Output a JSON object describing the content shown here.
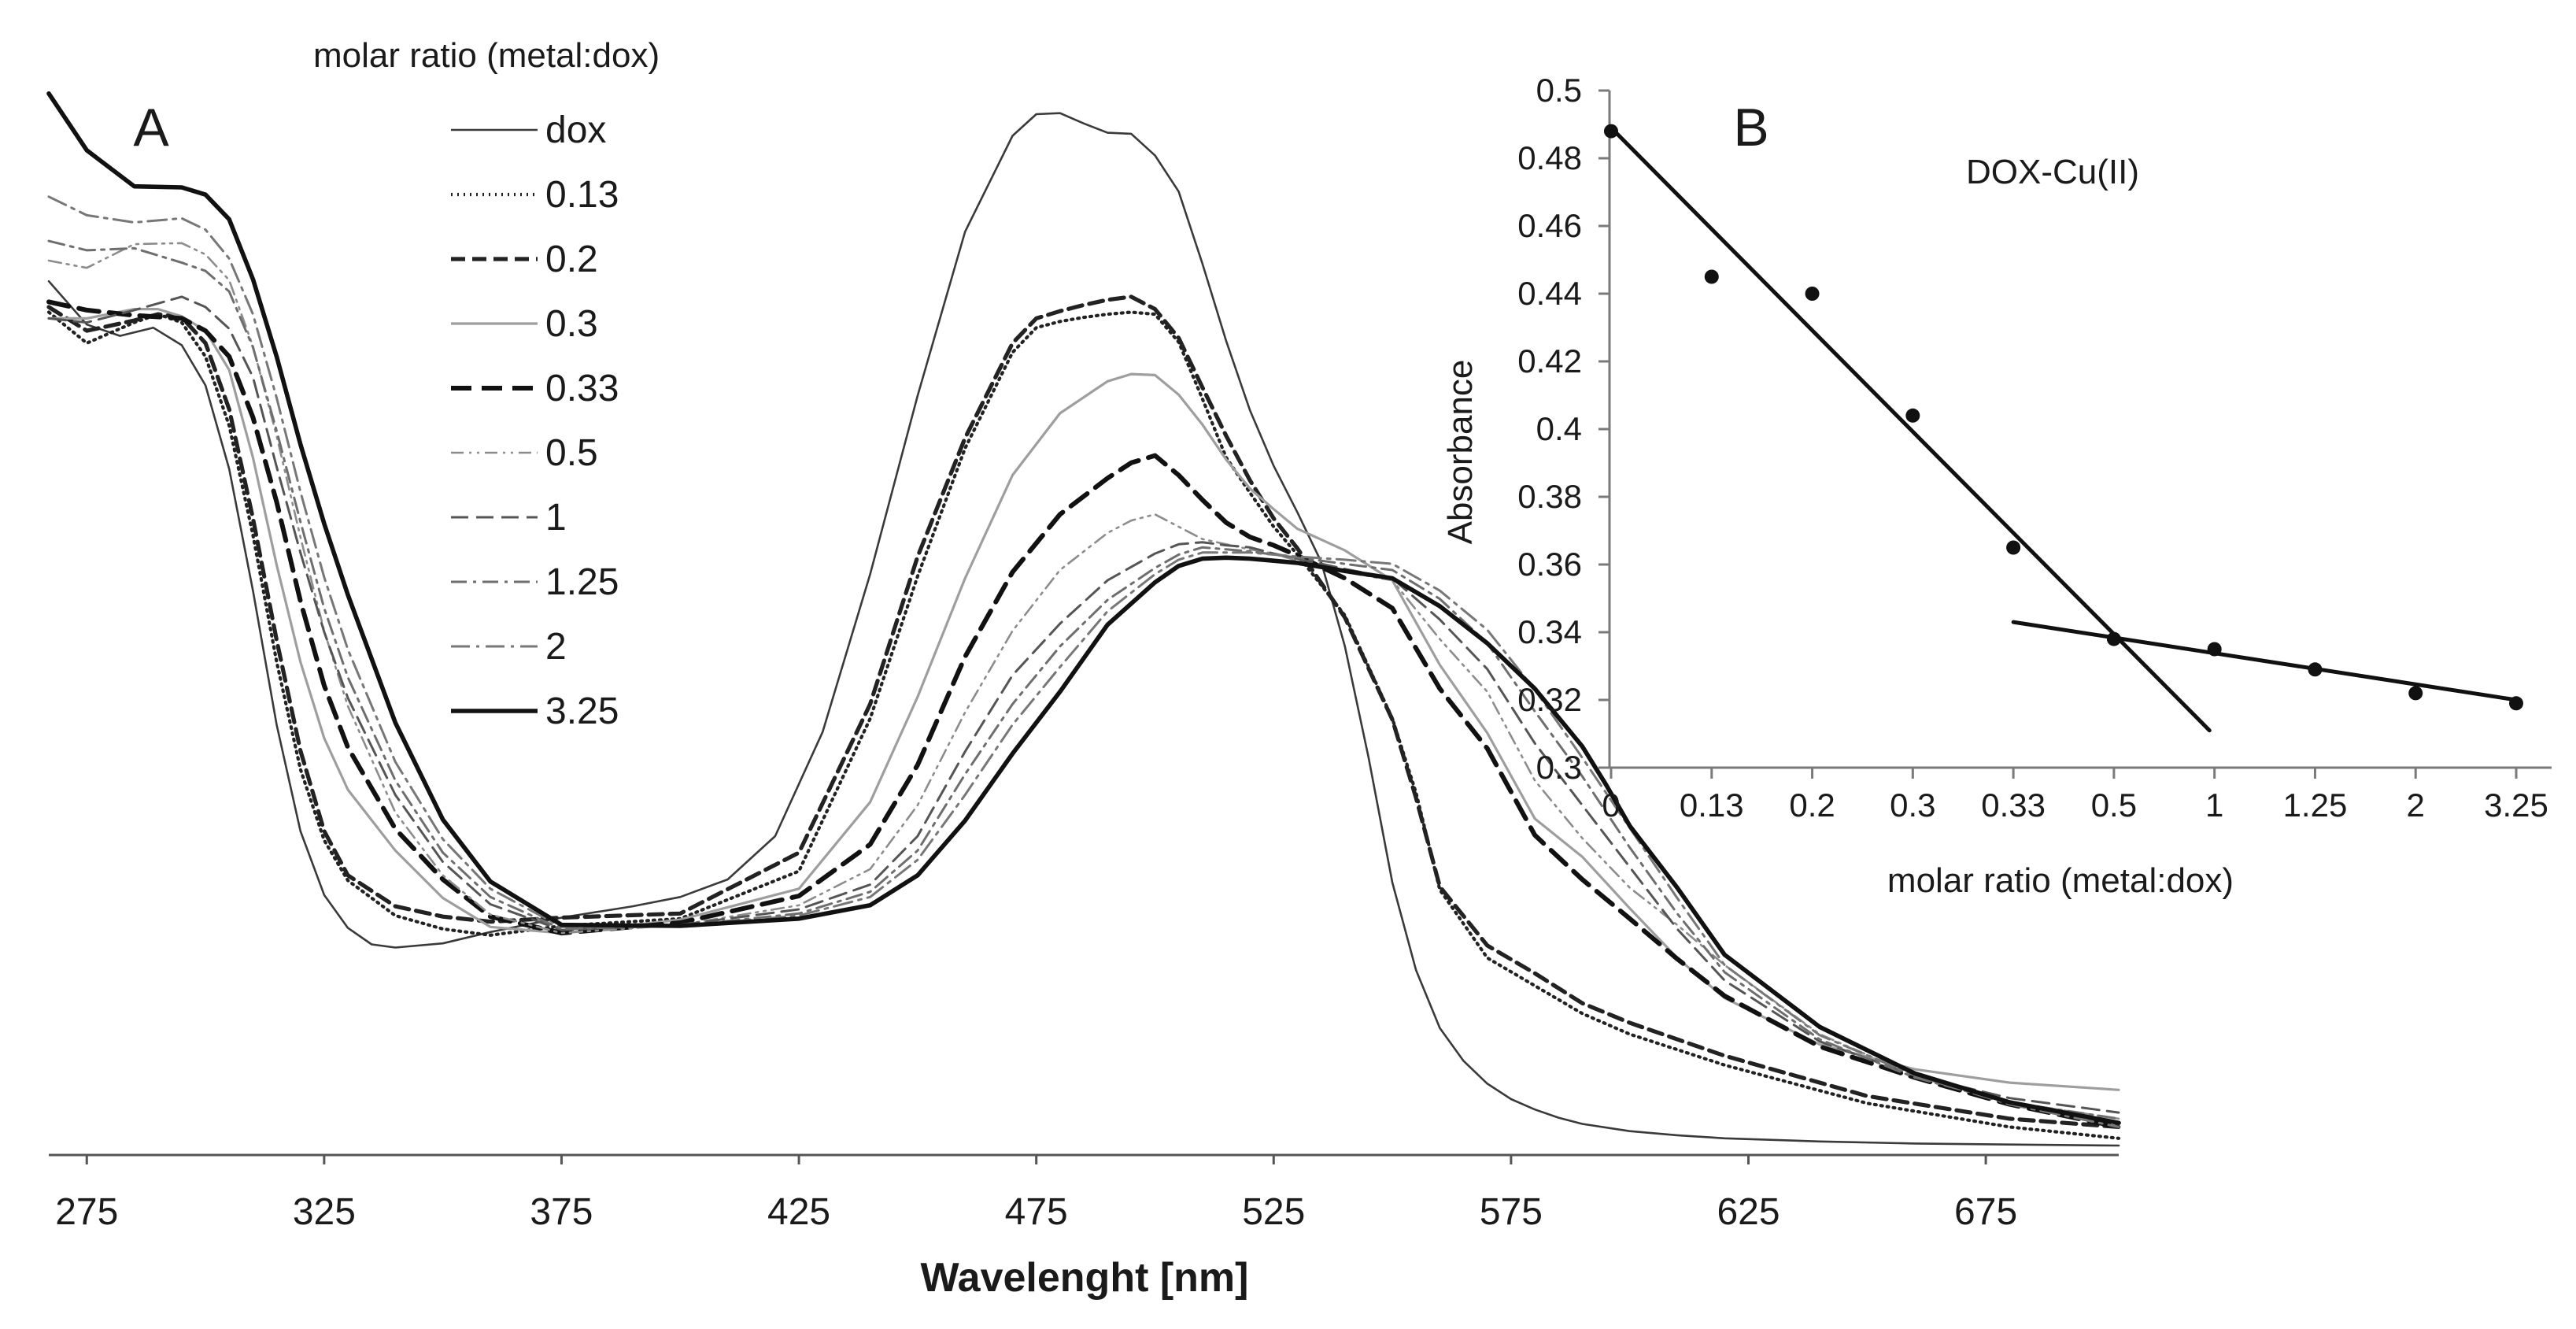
{
  "chart_data": [
    {
      "panel": "A",
      "type": "line",
      "title": "",
      "xlabel": "Wavelenght [nm]",
      "ylabel": "",
      "xlim": [
        267,
        703
      ],
      "ylim": [
        0,
        1
      ],
      "x_ticks": [
        275,
        325,
        375,
        425,
        475,
        525,
        575,
        625,
        675
      ],
      "tick_labels": [
        "275",
        "325",
        "375",
        "425",
        "475",
        "525",
        "575",
        "625",
        "675"
      ],
      "legend_title": "molar ratio (metal:dox)",
      "legend_position": "top-center",
      "colors": {
        "dox": "#3a3a3a",
        "0.13": "#222222",
        "0.2": "#222222",
        "0.3": "#9e9e9e",
        "0.33": "#111111",
        "0.5": "#8c8c8c",
        "1": "#555555",
        "1.25": "#6e6e6e",
        "2": "#777777",
        "3.25": "#111111"
      },
      "series": [
        {
          "name": "dox",
          "x": [
            267,
            275,
            282,
            289,
            295,
            300,
            305,
            310,
            315,
            320,
            325,
            330,
            335,
            340,
            350,
            360,
            375,
            390,
            400,
            410,
            420,
            430,
            440,
            450,
            460,
            470,
            475,
            480,
            485,
            490,
            495,
            500,
            505,
            510,
            515,
            520,
            525,
            530,
            535,
            540,
            545,
            550,
            555,
            560,
            565,
            570,
            575,
            580,
            585,
            590,
            600,
            610,
            620,
            640,
            660,
            680,
            703
          ],
          "values": [
            0.838,
            0.796,
            0.785,
            0.793,
            0.776,
            0.737,
            0.656,
            0.538,
            0.408,
            0.305,
            0.243,
            0.211,
            0.195,
            0.192,
            0.196,
            0.207,
            0.221,
            0.232,
            0.241,
            0.258,
            0.3,
            0.401,
            0.554,
            0.727,
            0.886,
            0.979,
            1.0,
            1.001,
            0.991,
            0.982,
            0.981,
            0.96,
            0.925,
            0.855,
            0.78,
            0.713,
            0.659,
            0.614,
            0.566,
            0.484,
            0.376,
            0.255,
            0.17,
            0.114,
            0.082,
            0.06,
            0.045,
            0.035,
            0.027,
            0.021,
            0.014,
            0.01,
            0.007,
            0.004,
            0.002,
            0.001,
            0.0
          ]
        },
        {
          "name": "0.13",
          "x": [
            267,
            275,
            285,
            290,
            295,
            300,
            305,
            310,
            315,
            320,
            325,
            330,
            340,
            350,
            360,
            375,
            400,
            425,
            440,
            450,
            460,
            470,
            475,
            480,
            485,
            490,
            495,
            500,
            505,
            510,
            515,
            520,
            525,
            530,
            540,
            550,
            555,
            560,
            570,
            580,
            590,
            600,
            620,
            650,
            680,
            703
          ],
          "values": [
            0.808,
            0.778,
            0.798,
            0.806,
            0.798,
            0.765,
            0.698,
            0.592,
            0.469,
            0.365,
            0.296,
            0.257,
            0.223,
            0.21,
            0.204,
            0.213,
            0.22,
            0.266,
            0.414,
            0.552,
            0.676,
            0.769,
            0.793,
            0.799,
            0.803,
            0.806,
            0.808,
            0.806,
            0.779,
            0.724,
            0.667,
            0.633,
            0.6,
            0.573,
            0.514,
            0.414,
            0.342,
            0.248,
            0.182,
            0.155,
            0.128,
            0.108,
            0.078,
            0.041,
            0.018,
            0.007
          ]
        },
        {
          "name": "0.2",
          "x": [
            267,
            275,
            285,
            290,
            295,
            300,
            305,
            310,
            315,
            320,
            325,
            330,
            340,
            350,
            360,
            375,
            400,
            425,
            440,
            450,
            460,
            470,
            475,
            480,
            485,
            490,
            495,
            500,
            505,
            510,
            515,
            520,
            525,
            530,
            540,
            550,
            555,
            560,
            570,
            580,
            590,
            600,
            620,
            650,
            680,
            703
          ],
          "values": [
            0.813,
            0.79,
            0.8,
            0.806,
            0.803,
            0.778,
            0.714,
            0.608,
            0.49,
            0.383,
            0.305,
            0.262,
            0.232,
            0.222,
            0.217,
            0.221,
            0.225,
            0.284,
            0.428,
            0.571,
            0.686,
            0.778,
            0.802,
            0.809,
            0.815,
            0.82,
            0.823,
            0.811,
            0.783,
            0.735,
            0.688,
            0.645,
            0.608,
            0.579,
            0.512,
            0.413,
            0.337,
            0.251,
            0.194,
            0.167,
            0.138,
            0.119,
            0.087,
            0.048,
            0.026,
            0.018
          ]
        },
        {
          "name": "0.3",
          "x": [
            267,
            275,
            285,
            290,
            295,
            300,
            305,
            310,
            315,
            320,
            325,
            330,
            340,
            350,
            360,
            375,
            400,
            425,
            440,
            450,
            460,
            470,
            480,
            490,
            495,
            500,
            505,
            510,
            515,
            520,
            525,
            530,
            540,
            550,
            560,
            570,
            580,
            590,
            600,
            610,
            620,
            640,
            660,
            680,
            703
          ],
          "values": [
            0.802,
            0.802,
            0.811,
            0.811,
            0.804,
            0.79,
            0.752,
            0.667,
            0.563,
            0.469,
            0.395,
            0.345,
            0.286,
            0.24,
            0.212,
            0.206,
            0.219,
            0.249,
            0.333,
            0.435,
            0.55,
            0.65,
            0.71,
            0.741,
            0.748,
            0.747,
            0.728,
            0.699,
            0.665,
            0.637,
            0.617,
            0.598,
            0.577,
            0.548,
            0.466,
            0.4,
            0.317,
            0.28,
            0.23,
            0.182,
            0.143,
            0.098,
            0.074,
            0.061,
            0.054
          ]
        },
        {
          "name": "0.33",
          "x": [
            267,
            275,
            285,
            295,
            300,
            305,
            310,
            315,
            320,
            325,
            330,
            340,
            350,
            360,
            375,
            400,
            425,
            440,
            450,
            460,
            470,
            480,
            490,
            495,
            500,
            505,
            510,
            515,
            520,
            525,
            530,
            540,
            550,
            560,
            570,
            580,
            590,
            600,
            610,
            620,
            640,
            660,
            680,
            703
          ],
          "values": [
            0.818,
            0.81,
            0.805,
            0.802,
            0.79,
            0.765,
            0.706,
            0.624,
            0.528,
            0.446,
            0.386,
            0.307,
            0.258,
            0.222,
            0.206,
            0.216,
            0.242,
            0.292,
            0.369,
            0.474,
            0.556,
            0.612,
            0.647,
            0.662,
            0.669,
            0.65,
            0.626,
            0.604,
            0.59,
            0.582,
            0.572,
            0.55,
            0.521,
            0.443,
            0.385,
            0.301,
            0.258,
            0.22,
            0.181,
            0.145,
            0.096,
            0.066,
            0.04,
            0.018
          ]
        },
        {
          "name": "0.5",
          "x": [
            267,
            275,
            285,
            295,
            300,
            305,
            310,
            315,
            320,
            325,
            330,
            340,
            350,
            360,
            375,
            400,
            425,
            440,
            450,
            460,
            470,
            480,
            490,
            495,
            500,
            505,
            510,
            515,
            520,
            525,
            530,
            540,
            550,
            560,
            570,
            580,
            590,
            600,
            610,
            620,
            640,
            660,
            680,
            703
          ],
          "values": [
            0.858,
            0.851,
            0.874,
            0.875,
            0.864,
            0.839,
            0.775,
            0.688,
            0.59,
            0.499,
            0.426,
            0.323,
            0.262,
            0.224,
            0.206,
            0.214,
            0.233,
            0.268,
            0.33,
            0.42,
            0.499,
            0.558,
            0.594,
            0.606,
            0.612,
            0.6,
            0.588,
            0.583,
            0.578,
            0.574,
            0.567,
            0.556,
            0.548,
            0.491,
            0.44,
            0.354,
            0.298,
            0.25,
            0.214,
            0.175,
            0.108,
            0.068,
            0.042,
            0.026
          ]
        },
        {
          "name": "1",
          "x": [
            267,
            275,
            285,
            295,
            300,
            305,
            310,
            315,
            320,
            325,
            330,
            340,
            350,
            360,
            375,
            400,
            425,
            440,
            450,
            460,
            470,
            480,
            490,
            500,
            505,
            510,
            515,
            520,
            525,
            530,
            540,
            550,
            560,
            570,
            580,
            590,
            600,
            610,
            620,
            640,
            660,
            680,
            703
          ],
          "values": [
            0.802,
            0.798,
            0.81,
            0.823,
            0.813,
            0.792,
            0.745,
            0.658,
            0.575,
            0.498,
            0.434,
            0.34,
            0.275,
            0.234,
            0.209,
            0.214,
            0.229,
            0.253,
            0.3,
            0.382,
            0.456,
            0.506,
            0.548,
            0.574,
            0.583,
            0.585,
            0.582,
            0.58,
            0.574,
            0.569,
            0.559,
            0.55,
            0.51,
            0.462,
            0.39,
            0.33,
            0.27,
            0.21,
            0.16,
            0.101,
            0.068,
            0.046,
            0.032
          ]
        },
        {
          "name": "1.25",
          "x": [
            267,
            275,
            285,
            295,
            300,
            305,
            310,
            315,
            320,
            325,
            330,
            340,
            350,
            360,
            375,
            400,
            425,
            440,
            450,
            460,
            470,
            480,
            490,
            500,
            505,
            510,
            515,
            520,
            525,
            530,
            540,
            550,
            560,
            570,
            580,
            590,
            600,
            610,
            620,
            640,
            660,
            680,
            703
          ],
          "values": [
            0.877,
            0.868,
            0.87,
            0.856,
            0.848,
            0.828,
            0.774,
            0.693,
            0.605,
            0.521,
            0.454,
            0.354,
            0.284,
            0.241,
            0.21,
            0.213,
            0.225,
            0.246,
            0.286,
            0.36,
            0.428,
            0.484,
            0.529,
            0.56,
            0.573,
            0.58,
            0.578,
            0.576,
            0.573,
            0.57,
            0.564,
            0.558,
            0.53,
            0.487,
            0.421,
            0.358,
            0.289,
            0.225,
            0.168,
            0.103,
            0.066,
            0.042,
            0.026
          ]
        },
        {
          "name": "2",
          "x": [
            267,
            275,
            285,
            295,
            300,
            305,
            310,
            315,
            320,
            325,
            330,
            340,
            350,
            360,
            375,
            400,
            425,
            440,
            450,
            460,
            470,
            480,
            490,
            500,
            505,
            510,
            515,
            520,
            525,
            530,
            540,
            550,
            560,
            570,
            580,
            590,
            600,
            610,
            620,
            640,
            660,
            680,
            703
          ],
          "values": [
            0.92,
            0.902,
            0.895,
            0.899,
            0.888,
            0.86,
            0.806,
            0.725,
            0.634,
            0.551,
            0.481,
            0.372,
            0.297,
            0.249,
            0.212,
            0.213,
            0.223,
            0.241,
            0.277,
            0.34,
            0.408,
            0.464,
            0.518,
            0.554,
            0.568,
            0.575,
            0.575,
            0.575,
            0.573,
            0.571,
            0.568,
            0.564,
            0.538,
            0.5,
            0.442,
            0.376,
            0.308,
            0.24,
            0.175,
            0.107,
            0.068,
            0.04,
            0.018
          ]
        },
        {
          "name": "3.25",
          "x": [
            267,
            275,
            285,
            295,
            300,
            305,
            310,
            315,
            320,
            325,
            330,
            340,
            350,
            360,
            375,
            400,
            425,
            440,
            450,
            460,
            470,
            480,
            490,
            500,
            505,
            510,
            515,
            520,
            525,
            530,
            540,
            550,
            560,
            570,
            580,
            590,
            595,
            600,
            610,
            620,
            640,
            660,
            680,
            703
          ],
          "values": [
            1.02,
            0.965,
            0.93,
            0.929,
            0.922,
            0.898,
            0.84,
            0.765,
            0.68,
            0.603,
            0.534,
            0.41,
            0.316,
            0.256,
            0.214,
            0.213,
            0.22,
            0.233,
            0.262,
            0.315,
            0.38,
            0.44,
            0.505,
            0.546,
            0.562,
            0.569,
            0.57,
            0.569,
            0.567,
            0.565,
            0.557,
            0.55,
            0.523,
            0.487,
            0.443,
            0.387,
            0.35,
            0.31,
            0.25,
            0.185,
            0.115,
            0.07,
            0.042,
            0.022
          ]
        }
      ]
    },
    {
      "panel": "B",
      "type": "scatter",
      "title": "DOX-Cu(II)",
      "xlabel": "molar ratio (metal:dox)",
      "ylabel": "Absorbance",
      "categories": [
        "0",
        "0.13",
        "0.2",
        "0.3",
        "0.33",
        "0.5",
        "1",
        "1.25",
        "2",
        "3.25"
      ],
      "values": [
        0.488,
        0.445,
        0.44,
        0.404,
        0.365,
        0.338,
        0.335,
        0.329,
        0.322,
        0.319
      ],
      "ylim": [
        0.3,
        0.5
      ],
      "y_ticks": [
        0.3,
        0.32,
        0.34,
        0.36,
        0.38,
        0.4,
        0.42,
        0.44,
        0.46,
        0.48,
        0.5
      ],
      "y_tick_labels": [
        "0.3",
        "0.32",
        "0.34",
        "0.36",
        "0.38",
        "0.4",
        "0.42",
        "0.44",
        "0.46",
        "0.48",
        "0.5"
      ],
      "trend_lines": [
        {
          "name": "fit-1",
          "from": [
            0,
            0.489
          ],
          "to": [
            5.95,
            0.311
          ]
        },
        {
          "name": "fit-2",
          "from": [
            4.0,
            0.343
          ],
          "to": [
            9.0,
            0.32
          ]
        }
      ],
      "point_color": "#111111"
    }
  ],
  "labels": {
    "panel_a": "A",
    "panel_b": "B"
  }
}
